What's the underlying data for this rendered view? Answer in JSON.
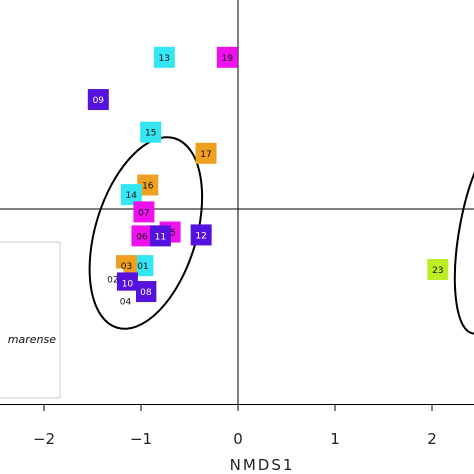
{
  "chart_data": {
    "type": "scatter",
    "xlabel": "NMDS1",
    "ylabel": "",
    "title": "",
    "xlim": [
      -2.45,
      2.45
    ],
    "ylim": [
      -1.95,
      2.1
    ],
    "x_ticks": [
      -2,
      -1,
      0,
      1,
      2
    ],
    "x_tick_labels": [
      "−2",
      "−1",
      "0",
      "1",
      "2"
    ],
    "reference_lines": {
      "x": 0,
      "y": 0
    },
    "grid": false,
    "legend": {
      "placement": "left",
      "visible_text": "marense"
    },
    "points": [
      {
        "label": "13",
        "x": -0.76,
        "y": 1.58,
        "color": "#33e6f2",
        "text_color": "#111111"
      },
      {
        "label": "19",
        "x": -0.11,
        "y": 1.58,
        "color": "#ee11ee",
        "text_color": "#111111"
      },
      {
        "label": "09",
        "x": -1.44,
        "y": 1.14,
        "color": "#5511dd",
        "text_color": "#ffffff"
      },
      {
        "label": "15",
        "x": -0.9,
        "y": 0.8,
        "color": "#33e6f2",
        "text_color": "#111111"
      },
      {
        "label": "17",
        "x": -0.33,
        "y": 0.58,
        "color": "#f0a020",
        "text_color": "#111111"
      },
      {
        "label": "16",
        "x": -0.93,
        "y": 0.25,
        "color": "#f0a020",
        "text_color": "#111111"
      },
      {
        "label": "14",
        "x": -1.1,
        "y": 0.15,
        "color": "#33e6f2",
        "text_color": "#111111"
      },
      {
        "label": "07",
        "x": -0.97,
        "y": -0.03,
        "color": "#ee11ee",
        "text_color": "#111111"
      },
      {
        "label": "05",
        "x": -0.7,
        "y": -0.24,
        "color": "#ee11ee",
        "text_color": "#111111"
      },
      {
        "label": "06",
        "x": -0.99,
        "y": -0.28,
        "color": "#ee11ee",
        "text_color": "#111111"
      },
      {
        "label": "11",
        "x": -0.8,
        "y": -0.28,
        "color": "#5511dd",
        "text_color": "#ffffff"
      },
      {
        "label": "12",
        "x": -0.38,
        "y": -0.27,
        "color": "#5511dd",
        "text_color": "#ffffff"
      },
      {
        "label": "01",
        "x": -0.98,
        "y": -0.59,
        "color": "#33e6f2",
        "text_color": "#111111"
      },
      {
        "label": "03",
        "x": -1.15,
        "y": -0.59,
        "color": "#f0a020",
        "text_color": "#111111"
      },
      {
        "label": "02",
        "x": -1.29,
        "y": -0.73,
        "color": "#ffffff",
        "text_color": "#111111"
      },
      {
        "label": "10",
        "x": -1.14,
        "y": -0.77,
        "color": "#5511dd",
        "text_color": "#ffffff"
      },
      {
        "label": "08",
        "x": -0.95,
        "y": -0.86,
        "color": "#5511dd",
        "text_color": "#ffffff"
      },
      {
        "label": "04",
        "x": -1.16,
        "y": -0.96,
        "color": "#ffffff",
        "text_color": "#111111"
      },
      {
        "label": "23",
        "x": 2.06,
        "y": -0.63,
        "color": "#bbee22",
        "text_color": "#111111"
      }
    ],
    "ellipses": [
      {
        "cx": -0.95,
        "cy": -0.25,
        "rx": 1.02,
        "ry": 0.52,
        "angle_deg": -73,
        "color": "#000000"
      },
      {
        "cx": 2.6,
        "cy": -0.25,
        "rx": 1.05,
        "ry": 0.32,
        "angle_deg": -80,
        "color": "#000000"
      }
    ]
  }
}
